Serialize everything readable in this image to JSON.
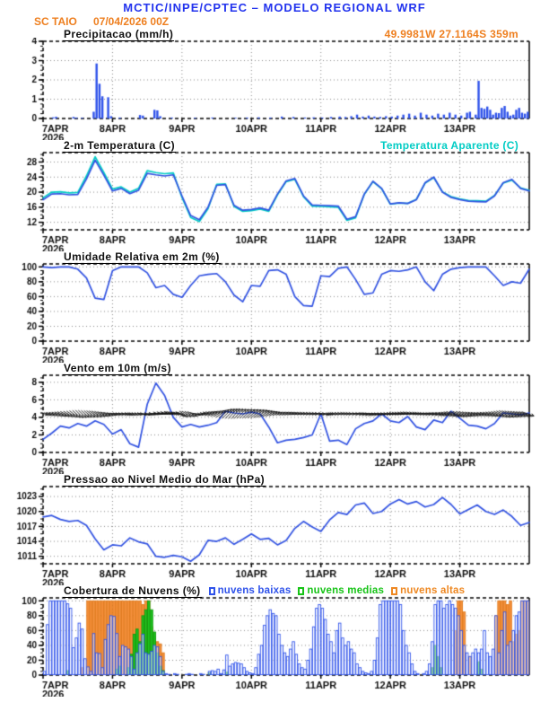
{
  "header": {
    "title": "MCTIC/INPE/CPTEC – MODELO REGIONAL WRF",
    "station": "SC TAIO",
    "run": "07/04/2026 00Z",
    "location": "49.9981W 27.1164S 359m"
  },
  "x_axis": {
    "day_labels": [
      "7APR",
      "8APR",
      "9APR",
      "10APR",
      "11APR",
      "12APR",
      "13APR"
    ],
    "year_label": "2026",
    "hours_total": 168
  },
  "colors": {
    "title_blue": "#2233ee",
    "orange": "#ee7f1f",
    "line_blue": "#3152e1",
    "cyan": "#00ccc4",
    "bar_blue": "#2e52ea",
    "cloud_orange_fill": "#f5913d",
    "cloud_orange_stroke": "#e07818",
    "cloud_green_fill": "#1ec41e",
    "cloud_green_stroke": "#0f9a0f",
    "grid": "#888888",
    "frame": "#000000"
  },
  "chart_data": "see panels",
  "panels": [
    {
      "id": "precip",
      "type": "bar",
      "title": "Precipitacao (mm/h)",
      "ylim": [
        0,
        4
      ],
      "yticks": [
        0,
        1,
        2,
        3,
        4
      ],
      "yminor": 0.25,
      "bars": [
        [
          3,
          0.06
        ],
        [
          4,
          0.09
        ],
        [
          10,
          0.08
        ],
        [
          11,
          0.05
        ],
        [
          13,
          0.04
        ],
        [
          17,
          0.35
        ],
        [
          18,
          2.85
        ],
        [
          19,
          1.8
        ],
        [
          20,
          1.15
        ],
        [
          22,
          1.1
        ],
        [
          23,
          0.12
        ],
        [
          26,
          0.05
        ],
        [
          33,
          0.18
        ],
        [
          34,
          0.15
        ],
        [
          38,
          0.45
        ],
        [
          39,
          0.42
        ],
        [
          40,
          0.12
        ],
        [
          44,
          0.05
        ],
        [
          52,
          0.04
        ],
        [
          58,
          0.05
        ],
        [
          66,
          0.04
        ],
        [
          70,
          0.05
        ],
        [
          74,
          0.06
        ],
        [
          78,
          0.05
        ],
        [
          82,
          0.1
        ],
        [
          86,
          0.08
        ],
        [
          90,
          0.05
        ],
        [
          93,
          0.06
        ],
        [
          96,
          0.05
        ],
        [
          99,
          0.08
        ],
        [
          102,
          0.1
        ],
        [
          104,
          0.08
        ],
        [
          106,
          0.12
        ],
        [
          108,
          0.2
        ],
        [
          110,
          0.1
        ],
        [
          112,
          0.15
        ],
        [
          114,
          0.1
        ],
        [
          116,
          0.08
        ],
        [
          118,
          0.12
        ],
        [
          120,
          0.1
        ],
        [
          122,
          0.15
        ],
        [
          124,
          0.2
        ],
        [
          126,
          0.25
        ],
        [
          128,
          0.15
        ],
        [
          130,
          0.3
        ],
        [
          132,
          0.2
        ],
        [
          134,
          0.15
        ],
        [
          136,
          0.25
        ],
        [
          138,
          0.2
        ],
        [
          140,
          0.3
        ],
        [
          142,
          0.2
        ],
        [
          144,
          0.15
        ],
        [
          146,
          0.3
        ],
        [
          147,
          0.35
        ],
        [
          149,
          0.2
        ],
        [
          150,
          1.95
        ],
        [
          151,
          0.55
        ],
        [
          152,
          0.5
        ],
        [
          153,
          0.62
        ],
        [
          154,
          0.45
        ],
        [
          155,
          0.2
        ],
        [
          156,
          0.3
        ],
        [
          157,
          0.28
        ],
        [
          158,
          0.55
        ],
        [
          159,
          0.65
        ],
        [
          160,
          0.35
        ],
        [
          161,
          0.15
        ],
        [
          162,
          0.2
        ],
        [
          163,
          0.45
        ],
        [
          164,
          0.55
        ],
        [
          165,
          0.3
        ],
        [
          166,
          0.25
        ],
        [
          167,
          0.35
        ]
      ]
    },
    {
      "id": "temp2m",
      "type": "line",
      "title": "2-m Temperatura (C)",
      "ylim": [
        10,
        30.5
      ],
      "yticks": [
        12,
        16,
        20,
        24,
        28
      ],
      "yminor": 1,
      "step_h": 3,
      "series": [
        {
          "name": "2-m Temperatura (C)",
          "color_key": "line_blue",
          "values": [
            18.0,
            19.5,
            19.6,
            19.3,
            19.4,
            23.5,
            28.5,
            24.5,
            20.3,
            21.0,
            19.6,
            20.5,
            25.0,
            24.6,
            24.3,
            24.6,
            19.0,
            13.8,
            12.7,
            16.0,
            21.8,
            22.0,
            16.5,
            15.2,
            15.4,
            15.8,
            15.2,
            19.5,
            23.0,
            23.6,
            19.0,
            16.6,
            16.5,
            16.4,
            16.3,
            12.8,
            13.5,
            19.5,
            22.9,
            21.0,
            16.9,
            17.2,
            17.0,
            18.0,
            22.5,
            24.0,
            20.0,
            18.6,
            18.0,
            17.6,
            17.5,
            17.4,
            19.0,
            22.5,
            23.4,
            21.0,
            20.3
          ]
        },
        {
          "name": "Temperatura Aparente (C)",
          "color_key": "cyan",
          "values": [
            18.5,
            20.0,
            20.1,
            19.8,
            19.9,
            24.3,
            29.4,
            25.2,
            20.8,
            21.4,
            20.0,
            21.0,
            25.7,
            25.2,
            24.9,
            25.1,
            18.6,
            13.3,
            12.2,
            15.6,
            22.1,
            22.2,
            16.2,
            14.9,
            15.1,
            15.5,
            14.9,
            19.3,
            22.8,
            23.4,
            18.8,
            16.3,
            16.2,
            16.1,
            16.0,
            12.5,
            13.2,
            19.4,
            22.8,
            20.9,
            16.8,
            17.1,
            17.0,
            18.1,
            22.4,
            23.9,
            20.1,
            18.8,
            18.2,
            17.8,
            17.7,
            17.6,
            19.1,
            22.4,
            23.2,
            21.1,
            20.5
          ]
        }
      ]
    },
    {
      "id": "rh2m",
      "type": "line",
      "title": "Umidade Relativa em 2m (%)",
      "ylim": [
        0,
        104
      ],
      "yticks": [
        0,
        20,
        40,
        60,
        80,
        100
      ],
      "yminor": 5,
      "step_h": 3,
      "series": [
        {
          "name": "Umidade Relativa",
          "color_key": "line_blue",
          "values": [
            100,
            99,
            100,
            100,
            97,
            85,
            58,
            56,
            95,
            100,
            100,
            100,
            92,
            72,
            75,
            63,
            59,
            75,
            88,
            90,
            91,
            80,
            62,
            53,
            75,
            74,
            95,
            96,
            90,
            60,
            48,
            47,
            88,
            87,
            98,
            100,
            83,
            63,
            65,
            90,
            95,
            94,
            96,
            100,
            80,
            68,
            90,
            97,
            99,
            100,
            100,
            100,
            88,
            75,
            80,
            78,
            97
          ]
        }
      ]
    },
    {
      "id": "wind10m",
      "type": "line+arrows",
      "title": "Vento em 10m (m/s)",
      "ylim": [
        0,
        8.8
      ],
      "yticks": [
        0,
        2,
        4,
        6,
        8
      ],
      "yminor": 0.5,
      "step_h": 3,
      "arrow_anchor": 4.4,
      "arrow_angles_deg": [
        -15,
        -20,
        -25,
        -35,
        -45,
        -40,
        -30,
        -20,
        -10,
        -5,
        -15,
        -10,
        5,
        8,
        5,
        0,
        -35,
        -25,
        10,
        20,
        30,
        45,
        50,
        45,
        40,
        35,
        30,
        25,
        20,
        10,
        5,
        0,
        -5,
        0,
        5,
        0,
        -5,
        -10,
        -5,
        0,
        5,
        10,
        5,
        0,
        -5,
        -10,
        -15,
        -20,
        -25,
        -20,
        -15,
        -20,
        -25,
        -30,
        -25,
        -20,
        -18
      ],
      "series": [
        {
          "name": "Velocidade do Vento",
          "color_key": "line_blue",
          "values": [
            1.5,
            2.2,
            3.0,
            2.8,
            3.3,
            3.0,
            3.6,
            3.2,
            2.1,
            2.6,
            1.0,
            0.6,
            5.5,
            7.9,
            6.5,
            4.0,
            2.9,
            3.2,
            2.9,
            3.1,
            3.4,
            4.7,
            4.5,
            4.4,
            4.6,
            4.4,
            2.9,
            1.1,
            1.4,
            1.5,
            1.7,
            2.0,
            4.4,
            1.3,
            1.4,
            0.9,
            2.7,
            3.3,
            3.6,
            4.4,
            3.6,
            3.4,
            4.1,
            2.9,
            2.6,
            3.7,
            3.4,
            4.7,
            3.9,
            3.1,
            3.0,
            2.7,
            3.3,
            4.5,
            4.4,
            4.3,
            4.5
          ]
        }
      ]
    },
    {
      "id": "pmsl",
      "type": "line",
      "title": "Pressao ao Nivel Medio do Mar (hPa)",
      "ylim": [
        1009.5,
        1025
      ],
      "yticks": [
        1011,
        1014,
        1017,
        1020,
        1023
      ],
      "yminor": 1,
      "step_h": 3,
      "series": [
        {
          "name": "Pressao ao Nivel Medio do Mar",
          "color_key": "line_blue",
          "values": [
            1018.9,
            1019.2,
            1018.4,
            1018.0,
            1018.2,
            1017.2,
            1014.5,
            1012.3,
            1013.3,
            1013.1,
            1014.7,
            1013.9,
            1013.5,
            1011.0,
            1010.8,
            1011.2,
            1010.9,
            1010.0,
            1011.3,
            1014.2,
            1014.0,
            1014.7,
            1013.4,
            1014.4,
            1015.5,
            1014.4,
            1014.6,
            1013.3,
            1014.2,
            1016.6,
            1018.0,
            1016.9,
            1016.0,
            1018.3,
            1019.8,
            1019.4,
            1021.3,
            1021.7,
            1019.6,
            1020.0,
            1021.5,
            1022.4,
            1021.5,
            1022.0,
            1020.9,
            1021.4,
            1022.8,
            1021.4,
            1019.5,
            1020.4,
            1021.3,
            1020.0,
            1019.4,
            1020.3,
            1019.0,
            1017.2,
            1017.8
          ]
        }
      ]
    },
    {
      "id": "clouds",
      "type": "bar3",
      "title": "Cobertura de Nuvens (%)",
      "ylim": [
        0,
        104
      ],
      "yticks": [
        0,
        20,
        40,
        60,
        80,
        100
      ],
      "yminor": 5,
      "legend": [
        {
          "label": "nuvens baixas",
          "color_key": "bar_blue"
        },
        {
          "label": "nuvens medias",
          "color_key": "cloud_green_fill"
        },
        {
          "label": "nuvens altas",
          "color_key": "cloud_orange_fill"
        }
      ],
      "low_hourly": [
        5,
        68,
        100,
        100,
        100,
        100,
        100,
        100,
        96,
        90,
        37,
        50,
        70,
        62,
        22,
        11,
        5,
        56,
        30,
        29,
        10,
        48,
        68,
        80,
        79,
        56,
        25,
        40,
        38,
        35,
        25,
        8,
        30,
        42,
        55,
        30,
        28,
        32,
        40,
        38,
        25,
        5,
        2,
        1,
        0,
        2,
        1,
        0,
        0,
        1,
        2,
        1,
        0,
        0,
        2,
        1,
        0,
        5,
        6,
        5,
        8,
        2,
        7,
        27,
        12,
        15,
        17,
        16,
        15,
        10,
        5,
        3,
        2,
        10,
        28,
        40,
        67,
        80,
        88,
        83,
        80,
        55,
        40,
        30,
        25,
        35,
        45,
        28,
        15,
        10,
        8,
        20,
        35,
        65,
        90,
        95,
        90,
        75,
        55,
        45,
        30,
        60,
        70,
        50,
        40,
        45,
        35,
        30,
        15,
        10,
        5,
        3,
        2,
        5,
        20,
        50,
        95,
        100,
        100,
        100,
        100,
        100,
        100,
        95,
        60,
        40,
        30,
        15,
        5,
        2,
        0,
        2,
        5,
        15,
        45,
        95,
        100,
        100,
        90,
        95,
        100,
        95,
        90,
        80,
        60,
        40,
        30,
        25,
        30,
        35,
        30,
        35,
        60,
        30,
        25,
        35,
        80,
        30,
        60,
        85,
        40,
        45,
        60,
        80,
        85,
        100,
        100,
        100
      ],
      "mid_bars": [
        [
          8,
          6
        ],
        [
          25,
          8
        ],
        [
          26,
          12
        ],
        [
          29,
          10
        ],
        [
          30,
          28
        ],
        [
          31,
          55
        ],
        [
          32,
          62
        ],
        [
          33,
          45
        ],
        [
          34,
          80
        ],
        [
          35,
          88
        ],
        [
          36,
          100
        ],
        [
          37,
          88
        ],
        [
          38,
          58
        ],
        [
          39,
          30
        ],
        [
          40,
          12
        ],
        [
          41,
          6
        ],
        [
          57,
          3
        ],
        [
          63,
          4
        ],
        [
          134,
          10
        ],
        [
          135,
          40
        ],
        [
          136,
          25
        ],
        [
          137,
          10
        ],
        [
          150,
          18
        ],
        [
          151,
          8
        ]
      ],
      "high_bars": [
        [
          13,
          10
        ],
        [
          15,
          100
        ],
        [
          16,
          100
        ],
        [
          17,
          100
        ],
        [
          18,
          100
        ],
        [
          19,
          100
        ],
        [
          20,
          100
        ],
        [
          21,
          100
        ],
        [
          22,
          100
        ],
        [
          23,
          100
        ],
        [
          24,
          100
        ],
        [
          25,
          100
        ],
        [
          26,
          100
        ],
        [
          27,
          100
        ],
        [
          28,
          100
        ],
        [
          29,
          100
        ],
        [
          30,
          100
        ],
        [
          31,
          100
        ],
        [
          32,
          100
        ],
        [
          33,
          100
        ],
        [
          34,
          95
        ],
        [
          35,
          100
        ],
        [
          36,
          100
        ],
        [
          37,
          65
        ],
        [
          38,
          52
        ],
        [
          39,
          45
        ],
        [
          40,
          42
        ],
        [
          41,
          30
        ],
        [
          142,
          60
        ],
        [
          143,
          100
        ],
        [
          144,
          100
        ],
        [
          145,
          85
        ],
        [
          147,
          25
        ],
        [
          156,
          80
        ],
        [
          157,
          100
        ],
        [
          158,
          100
        ],
        [
          159,
          100
        ],
        [
          160,
          95
        ],
        [
          161,
          100
        ],
        [
          162,
          45
        ],
        [
          163,
          55
        ],
        [
          164,
          60
        ],
        [
          165,
          100
        ],
        [
          166,
          100
        ],
        [
          167,
          100
        ]
      ]
    }
  ]
}
